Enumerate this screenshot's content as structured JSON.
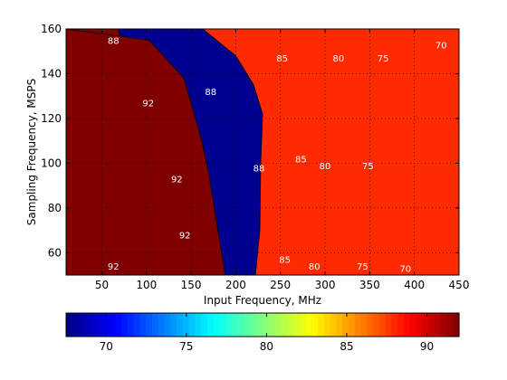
{
  "chart_data": {
    "type": "contour",
    "xlabel": "Input Frequency, MHz",
    "ylabel": "Sampling Frequency, MSPS",
    "xlim": [
      10,
      450
    ],
    "ylim": [
      50,
      160
    ],
    "x_ticks": [
      50,
      100,
      150,
      200,
      250,
      300,
      350,
      400,
      450
    ],
    "y_ticks": [
      60,
      80,
      100,
      120,
      140,
      160
    ],
    "grid": "dotted",
    "colormap": "jet",
    "colorbar": {
      "orientation": "horizontal",
      "position": "bottom",
      "range": [
        67.5,
        92
      ],
      "ticks": [
        70,
        75,
        80,
        85,
        90
      ]
    },
    "levels": [
      70,
      75,
      80,
      85,
      88,
      92
    ],
    "level_colors": {
      "below70": "#00008f",
      "70": "#0000ff",
      "75": "#00bfff",
      "80": "#80ff80",
      "85": "#ffbf00",
      "88": "#ff2a00",
      "92": "#800000"
    },
    "regions": [
      {
        "level": "70",
        "polygon": [
          [
            385,
            50
          ],
          [
            402,
            160
          ],
          [
            450,
            160
          ],
          [
            450,
            50
          ]
        ]
      },
      {
        "level": "75",
        "polygon": [
          [
            340,
            50
          ],
          [
            340,
            100
          ],
          [
            345,
            120
          ],
          [
            362,
            160
          ],
          [
            450,
            160
          ],
          [
            450,
            50
          ]
        ]
      },
      {
        "level": "80",
        "polygon": [
          [
            285,
            50
          ],
          [
            287,
            80
          ],
          [
            298,
            112
          ],
          [
            305,
            125
          ],
          [
            312,
            160
          ],
          [
            450,
            160
          ],
          [
            450,
            50
          ]
        ]
      },
      {
        "level": "85",
        "polygon": [
          [
            255,
            50
          ],
          [
            265,
            62
          ],
          [
            270,
            80
          ],
          [
            278,
            105
          ],
          [
            278,
            135
          ],
          [
            268,
            155
          ],
          [
            250,
            160
          ],
          [
            450,
            160
          ],
          [
            450,
            50
          ]
        ]
      },
      {
        "level": "88",
        "polygon": [
          [
            222,
            50
          ],
          [
            227,
            70
          ],
          [
            228,
            100
          ],
          [
            230,
            122
          ],
          [
            220,
            135
          ],
          [
            200,
            148
          ],
          [
            163,
            160
          ],
          [
            450,
            160
          ],
          [
            450,
            50
          ]
        ]
      },
      {
        "level": "92",
        "polygon": [
          [
            10,
            50
          ],
          [
            10,
            160
          ],
          [
            68,
            160
          ],
          [
            92,
            132
          ],
          [
            82,
            120
          ]
        ]
      },
      {
        "level": "92",
        "polygon": [
          [
            158,
            50
          ],
          [
            188,
            50
          ],
          [
            170,
            95
          ],
          [
            162,
            110
          ],
          [
            142,
            138
          ],
          [
            103,
            155
          ],
          [
            10,
            160
          ],
          [
            10,
            50
          ]
        ]
      }
    ],
    "contour_labels": [
      {
        "x": 63,
        "y": 155,
        "text": "88"
      },
      {
        "x": 102,
        "y": 127,
        "text": "92"
      },
      {
        "x": 172,
        "y": 132,
        "text": "88"
      },
      {
        "x": 252,
        "y": 147,
        "text": "85"
      },
      {
        "x": 315,
        "y": 147,
        "text": "80"
      },
      {
        "x": 365,
        "y": 147,
        "text": "75"
      },
      {
        "x": 430,
        "y": 153,
        "text": "70"
      },
      {
        "x": 226,
        "y": 98,
        "text": "88"
      },
      {
        "x": 273,
        "y": 102,
        "text": "85"
      },
      {
        "x": 300,
        "y": 99,
        "text": "80"
      },
      {
        "x": 348,
        "y": 99,
        "text": "75"
      },
      {
        "x": 134,
        "y": 93,
        "text": "92"
      },
      {
        "x": 143,
        "y": 68,
        "text": "92"
      },
      {
        "x": 63,
        "y": 54,
        "text": "92"
      },
      {
        "x": 255,
        "y": 57,
        "text": "85"
      },
      {
        "x": 288,
        "y": 54,
        "text": "80"
      },
      {
        "x": 342,
        "y": 54,
        "text": "75"
      },
      {
        "x": 390,
        "y": 53,
        "text": "70"
      }
    ]
  }
}
